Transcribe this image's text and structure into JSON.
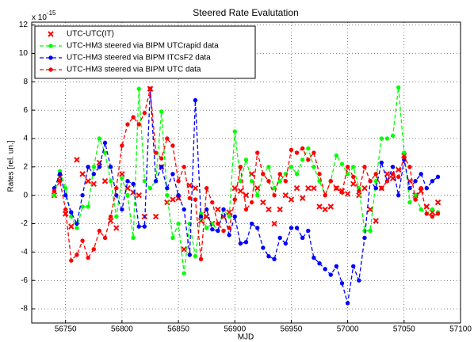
{
  "chart_data": {
    "type": "line",
    "title": "Steered Rate Evalutation",
    "x_label": "MJD",
    "y_label": "Rates [rel. un.]",
    "y_scale_label": {
      "base": "x 10",
      "exponent": "-15"
    },
    "x": [
      56740,
      56745,
      56750,
      56755,
      56760,
      56765,
      56770,
      56775,
      56780,
      56785,
      56790,
      56795,
      56800,
      56805,
      56810,
      56815,
      56820,
      56825,
      56830,
      56835,
      56840,
      56845,
      56850,
      56855,
      56860,
      56865,
      56870,
      56875,
      56880,
      56885,
      56890,
      56895,
      56900,
      56905,
      56910,
      56915,
      56920,
      56925,
      56930,
      56935,
      56940,
      56945,
      56950,
      56955,
      56960,
      56965,
      56970,
      56975,
      56980,
      56985,
      56990,
      56995,
      57000,
      57005,
      57010,
      57015,
      57020,
      57025,
      57030,
      57035,
      57040,
      57045,
      57050,
      57055,
      57060,
      57065,
      57070,
      57075,
      57080
    ],
    "series": [
      {
        "name": "UTC-UTC(IT)",
        "color": "#ff0000",
        "marker": "x",
        "linestyle": "none",
        "values": [
          0,
          1.3,
          -1.3,
          -2.2,
          2.5,
          1.5,
          1,
          0.8,
          2.3,
          1,
          -1.8,
          -2.3,
          1.5,
          0.5,
          0.2,
          0,
          -1.5,
          7.5,
          -1.5,
          2,
          -0.5,
          -0.3,
          -0.2,
          -3.8,
          0.7,
          0.5,
          -1.8,
          -1.5,
          -2,
          -1,
          -1.5,
          -1.2,
          0.5,
          0.3,
          0,
          1.5,
          0.5,
          -0.5,
          -1,
          -2,
          -1,
          0,
          -0.3,
          0.5,
          -0.2,
          0.5,
          0.5,
          -0.8,
          -1,
          -0.8,
          0.5,
          0.3,
          0.1,
          0.8,
          0,
          0.5,
          -1,
          -1.8,
          0.5,
          1.5,
          1.2,
          1.8,
          2.8,
          1,
          0,
          0.3,
          -0.8,
          -1.2,
          -0.5
        ]
      },
      {
        "name": "UTC-HM3 steered via BIPM UTCrapid data",
        "color": "#00ff00",
        "marker": "o",
        "linestyle": "dashed",
        "values": [
          0,
          1.7,
          0.5,
          -1.5,
          -2.3,
          -0.8,
          -0.8,
          2,
          4,
          3,
          1,
          -1.5,
          1.2,
          0,
          -3,
          7.5,
          1,
          0.5,
          1,
          5.9,
          0,
          -3,
          -2,
          -5.5,
          -2,
          -4.3,
          -1.3,
          -2.3,
          -2,
          -2.5,
          -1,
          -1.5,
          4.5,
          1,
          2.5,
          1,
          0,
          1.5,
          2,
          0.5,
          1,
          1.5,
          2,
          1.5,
          2.5,
          3.3,
          2,
          1,
          0,
          1,
          2.8,
          2.2,
          1.5,
          2,
          0.5,
          -2.5,
          -2.5,
          1,
          4,
          4,
          4.2,
          7.6,
          3,
          -0.5,
          0,
          -1,
          -1.3,
          -1,
          -1.2
        ]
      },
      {
        "name": "UTC-HM3 steered via BIPM ITCsF2 data",
        "color": "#0000ff",
        "marker": "o",
        "linestyle": "dashed",
        "values": [
          0.5,
          1.5,
          0,
          -1.2,
          -2,
          0,
          2,
          1.5,
          2,
          3.7,
          2,
          0,
          -1,
          1,
          0.8,
          -2.2,
          -2.2,
          7.5,
          1,
          2,
          0.5,
          1.5,
          0,
          -1,
          -4.2,
          6.7,
          -1.5,
          -1,
          -2.4,
          -2.5,
          -1,
          -2.8,
          -1.5,
          -3.4,
          -3.3,
          -2,
          -2.3,
          -3.7,
          -4.3,
          -4.5,
          -3,
          -3.4,
          -2.3,
          -2.3,
          -3,
          -2.5,
          -4.4,
          -4.8,
          -5.2,
          -5.6,
          -5,
          -6.2,
          -7.6,
          -5,
          -6,
          -3,
          1,
          0.5,
          2.3,
          1,
          2,
          0,
          2.5,
          0.5,
          1,
          1.5,
          0.5,
          1,
          1.3
        ]
      },
      {
        "name": "UTC-HM3 steered via BIPM UTC data",
        "color": "#ff0000",
        "marker": "o",
        "linestyle": "dashed",
        "values": [
          0.3,
          1,
          -1,
          -4.6,
          -4.2,
          -3.2,
          -4.4,
          -3.8,
          -2.5,
          -3,
          -1.5,
          0.5,
          3.5,
          5,
          5.5,
          5,
          5.8,
          7.5,
          3,
          2.6,
          4,
          3.5,
          1,
          2,
          -0.2,
          -0.3,
          -4.5,
          0.5,
          -0.5,
          -2,
          -2.5,
          -2.3,
          -0.3,
          2,
          -1,
          -0.5,
          3,
          1.5,
          1,
          0,
          1.5,
          1,
          3.2,
          3,
          3.3,
          2.5,
          3,
          1.5,
          0,
          1,
          0.5,
          0.2,
          2,
          1.3,
          0.3,
          2,
          1,
          1.5,
          0.5,
          1,
          1.5,
          1.3,
          2.7,
          2,
          -0.3,
          0.5,
          -1.3,
          -1.5,
          -1.3
        ]
      }
    ],
    "xlim": [
      56720,
      57100
    ],
    "xticks": [
      56750,
      56800,
      56850,
      56900,
      56950,
      57000,
      57050,
      57100
    ],
    "ylim": [
      -9,
      12.2
    ],
    "yticks": [
      -8,
      -6,
      -4,
      -2,
      0,
      2,
      4,
      6,
      8,
      10,
      12
    ],
    "grid": true,
    "legend": "upper left"
  }
}
